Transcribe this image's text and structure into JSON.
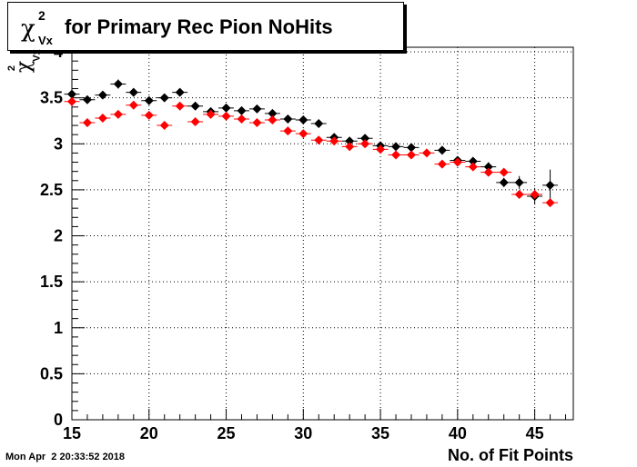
{
  "title": {
    "symbol": "χ",
    "superscript": "2",
    "subscript": "Vx",
    "text": "for Primary Rec Pion NoHits"
  },
  "ylabel": {
    "symbol": "χ",
    "superscript": "2",
    "subscript": "Vx"
  },
  "xlabel": "No. of Fit Points",
  "datestamp": "Mon Apr  2 20:33:52 2018",
  "colors": {
    "series_black": "#000000",
    "series_red": "#ff0000",
    "grid": "#000000"
  },
  "chart_data": {
    "type": "scatter",
    "xlim": [
      15,
      47.5
    ],
    "ylim": [
      0,
      4.05
    ],
    "x_ticks": [
      15,
      20,
      25,
      30,
      35,
      40,
      45
    ],
    "y_ticks": [
      0,
      0.5,
      1,
      1.5,
      2,
      2.5,
      3,
      3.5,
      4
    ],
    "x_tick_labels": [
      "15",
      "20",
      "25",
      "30",
      "35",
      "40",
      "45"
    ],
    "y_tick_labels": [
      "0",
      "0.5",
      "1",
      "1.5",
      "2",
      "2.5",
      "3",
      "3.5",
      "4"
    ],
    "grid": true,
    "x": [
      15,
      16,
      17,
      18,
      19,
      20,
      21,
      22,
      23,
      24,
      25,
      26,
      27,
      28,
      29,
      30,
      31,
      32,
      33,
      34,
      35,
      36,
      37,
      38,
      39,
      40,
      41,
      42,
      43,
      44,
      45,
      46
    ],
    "series": [
      {
        "color": "#000000",
        "values": [
          3.54,
          3.48,
          3.53,
          3.65,
          3.56,
          3.47,
          3.5,
          3.56,
          3.41,
          3.35,
          3.39,
          3.36,
          3.38,
          3.33,
          3.27,
          3.26,
          3.22,
          3.07,
          3.03,
          3.06,
          2.98,
          2.97,
          2.96,
          null,
          2.93,
          2.82,
          2.81,
          2.75,
          2.58,
          2.58,
          2.43,
          2.55
        ],
        "errors": [
          0.04,
          0.04,
          0.04,
          0.05,
          0.04,
          0.04,
          0.04,
          0.04,
          0.04,
          0.04,
          0.03,
          0.03,
          0.03,
          0.03,
          0.03,
          0.03,
          0.03,
          0.03,
          0.03,
          0.03,
          0.03,
          0.03,
          0.03,
          null,
          0.04,
          0.04,
          0.04,
          0.05,
          0.05,
          0.07,
          0.09,
          0.17
        ]
      },
      {
        "color": "#ff0000",
        "values": [
          3.46,
          3.23,
          3.28,
          3.32,
          3.42,
          3.31,
          3.2,
          3.41,
          3.24,
          3.32,
          3.3,
          3.27,
          3.23,
          3.26,
          3.14,
          3.11,
          3.04,
          3.03,
          2.97,
          3.0,
          2.94,
          2.88,
          2.88,
          2.9,
          2.78,
          2.8,
          2.75,
          2.69,
          2.69,
          2.45,
          2.45,
          2.36
        ]
      }
    ]
  }
}
